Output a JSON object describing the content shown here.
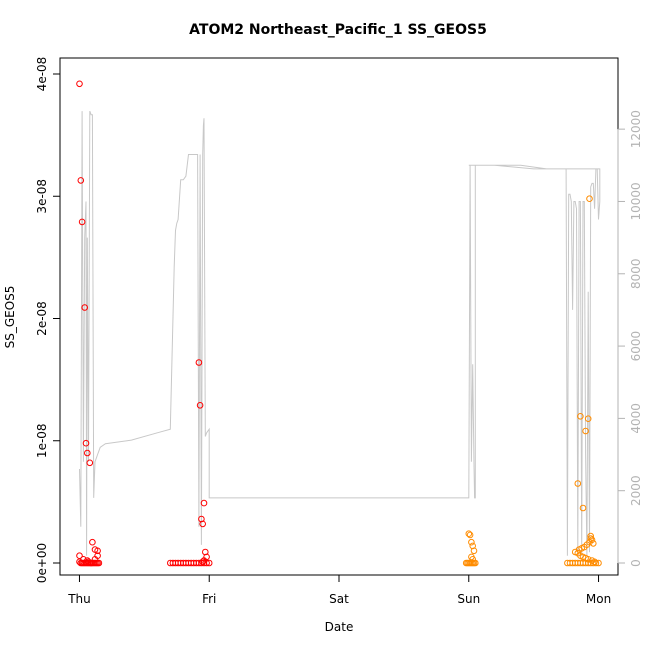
{
  "chart_data": {
    "type": "scatter",
    "title": "ATOM2 Northeast_Pacific_1 SS_GEOS5",
    "xlabel": "Date",
    "ylabel": "SS_GEOS5",
    "x_ticks": [
      "Thu",
      "Fri",
      "Sat",
      "Sun",
      "Mon"
    ],
    "x_range_days": [
      -0.15,
      4.15
    ],
    "ylim": [
      0,
      4e-08
    ],
    "y_ticks": [
      "0e+00",
      "1e-08",
      "2e-08",
      "3e-08",
      "4e-08"
    ],
    "y_tick_values": [
      0,
      1e-08,
      2e-08,
      3e-08,
      4e-08
    ],
    "y2lim": [
      0,
      13000
    ],
    "y2_ticks": [
      "0",
      "2000",
      "4000",
      "6000",
      "8000",
      "10000",
      "12000"
    ],
    "y2_tick_values": [
      0,
      2000,
      4000,
      6000,
      8000,
      10000,
      12000
    ],
    "grid": false,
    "colors": {
      "series_red": "#ff0000",
      "series_orange": "#ff8c00",
      "altitude_line": "#c8c8c8",
      "right_axis": "#b3b3b3"
    },
    "series": [
      {
        "color": "#ff0000",
        "marker": "open-circle",
        "x": [
          0.0,
          0.01,
          0.02,
          0.04,
          0.05,
          0.06,
          0.08,
          0.1,
          0.12,
          0.14,
          0.0,
          0.0,
          0.01,
          0.02,
          0.03,
          0.04,
          0.05,
          0.06,
          0.07,
          0.08,
          0.09,
          0.1,
          0.11,
          0.12,
          0.13,
          0.14,
          0.15,
          0.03,
          0.07,
          0.14,
          0.12,
          0.06,
          0.09,
          0.7,
          0.72,
          0.74,
          0.76,
          0.78,
          0.8,
          0.82,
          0.84,
          0.86,
          0.88,
          0.9,
          0.92,
          0.94,
          0.96,
          0.98,
          1.0,
          0.92,
          0.93,
          0.94,
          0.95,
          0.96,
          0.97,
          0.98,
          0.96,
          0.95
        ],
        "values": [
          3.92e-08,
          3.13e-08,
          2.79e-08,
          2.09e-08,
          9.8e-09,
          9e-09,
          8.2e-09,
          1.7e-09,
          1.1e-09,
          1e-09,
          6e-10,
          1e-10,
          0,
          0,
          0,
          0,
          0,
          0,
          0,
          0,
          0,
          0,
          0,
          0,
          0,
          0,
          0,
          3e-10,
          1e-10,
          6e-10,
          3e-10,
          2e-10,
          0,
          0,
          0,
          0,
          0,
          0,
          0,
          0,
          0,
          0,
          0,
          0,
          0,
          0,
          0,
          0,
          0,
          1.64e-08,
          1.29e-08,
          3.6e-09,
          3.2e-09,
          4.9e-09,
          9e-10,
          5e-10,
          2e-10,
          1e-10
        ]
      },
      {
        "color": "#ff8c00",
        "marker": "open-circle",
        "x": [
          2.98,
          2.99,
          3.0,
          3.01,
          3.02,
          3.03,
          3.04,
          3.05,
          3.0,
          3.01,
          3.02,
          3.03,
          3.04,
          3.02,
          3.03,
          3.76,
          3.78,
          3.8,
          3.82,
          3.84,
          3.86,
          3.88,
          3.9,
          3.92,
          3.94,
          3.96,
          3.98,
          4.0,
          3.84,
          3.86,
          3.88,
          3.9,
          3.92,
          3.93,
          3.94,
          3.95,
          3.96,
          3.85,
          3.87,
          3.89,
          3.91,
          3.93,
          3.94,
          3.82,
          3.84,
          3.86,
          3.88,
          3.9,
          3.92,
          3.95,
          3.97
        ],
        "values": [
          0,
          0,
          0,
          0,
          0,
          0,
          0,
          0,
          2.4e-09,
          2.3e-09,
          1.7e-09,
          1.4e-09,
          1e-09,
          5e-10,
          3e-10,
          0,
          0,
          0,
          0,
          0,
          0,
          0,
          0,
          0,
          0,
          0,
          0,
          0,
          6.5e-09,
          1.2e-08,
          4.5e-09,
          1.08e-08,
          1.18e-08,
          2.98e-08,
          2.2e-09,
          1.9e-09,
          1.6e-09,
          1.1e-09,
          1.2e-09,
          1.3e-09,
          1.5e-09,
          1.7e-09,
          2e-09,
          9e-10,
          8e-10,
          6e-10,
          5e-10,
          4e-10,
          3e-10,
          2e-10,
          1e-10
        ]
      }
    ],
    "altitude": {
      "color": "#c8c8c8",
      "axis": "right",
      "x": [
        0.0,
        0.01,
        0.02,
        0.03,
        0.04,
        0.05,
        0.055,
        0.06,
        0.07,
        0.08,
        0.09,
        0.1,
        0.11,
        0.12,
        0.13,
        0.14,
        0.15,
        0.16,
        0.2,
        0.4,
        0.6,
        0.7,
        0.73,
        0.74,
        0.75,
        0.76,
        0.78,
        0.8,
        0.82,
        0.84,
        0.86,
        0.88,
        0.9,
        0.91,
        0.92,
        0.93,
        0.94,
        0.95,
        0.955,
        0.96,
        0.97,
        0.98,
        1.0,
        1.0,
        1.2,
        1.4,
        1.6,
        1.8,
        2.0,
        2.2,
        2.4,
        2.6,
        2.8,
        3.0,
        3.01,
        3.02,
        3.03,
        3.04,
        3.045,
        3.05,
        3.05,
        3.2,
        3.4,
        3.6,
        3.75,
        3.76,
        3.77,
        3.78,
        3.79,
        3.8,
        3.81,
        3.82,
        3.83,
        3.84,
        3.85,
        3.86,
        3.87,
        3.88,
        3.89,
        3.9,
        3.91,
        3.92,
        3.93,
        3.94,
        3.95,
        3.96,
        3.97,
        3.98,
        3.99,
        4.0,
        4.01,
        4.01,
        3.95,
        3.8,
        3.5,
        3.2,
        3.0
      ],
      "values": [
        2600,
        1000,
        12500,
        2800,
        9000,
        10000,
        200,
        9000,
        2800,
        12500,
        12400,
        12400,
        1800,
        2800,
        2900,
        3000,
        3100,
        3200,
        3300,
        3400,
        3600,
        3700,
        8200,
        9200,
        9400,
        9500,
        10600,
        10600,
        10700,
        11300,
        11300,
        11300,
        11300,
        11300,
        1000,
        11300,
        500,
        11300,
        12100,
        12300,
        3500,
        3600,
        3700,
        1800,
        1800,
        1800,
        1800,
        1800,
        1800,
        1800,
        1800,
        1800,
        1800,
        1800,
        11000,
        2800,
        5500,
        2700,
        1800,
        1800,
        11000,
        11000,
        11000,
        10900,
        10900,
        200,
        10200,
        10200,
        10000,
        7000,
        10000,
        10000,
        9800,
        300,
        10000,
        10000,
        200,
        10000,
        10000,
        3000,
        200,
        7500,
        300,
        10400,
        10500,
        10500,
        9800,
        10900,
        10900,
        9500,
        10000,
        10900,
        10900,
        10900,
        10900,
        11000,
        11000
      ]
    }
  }
}
